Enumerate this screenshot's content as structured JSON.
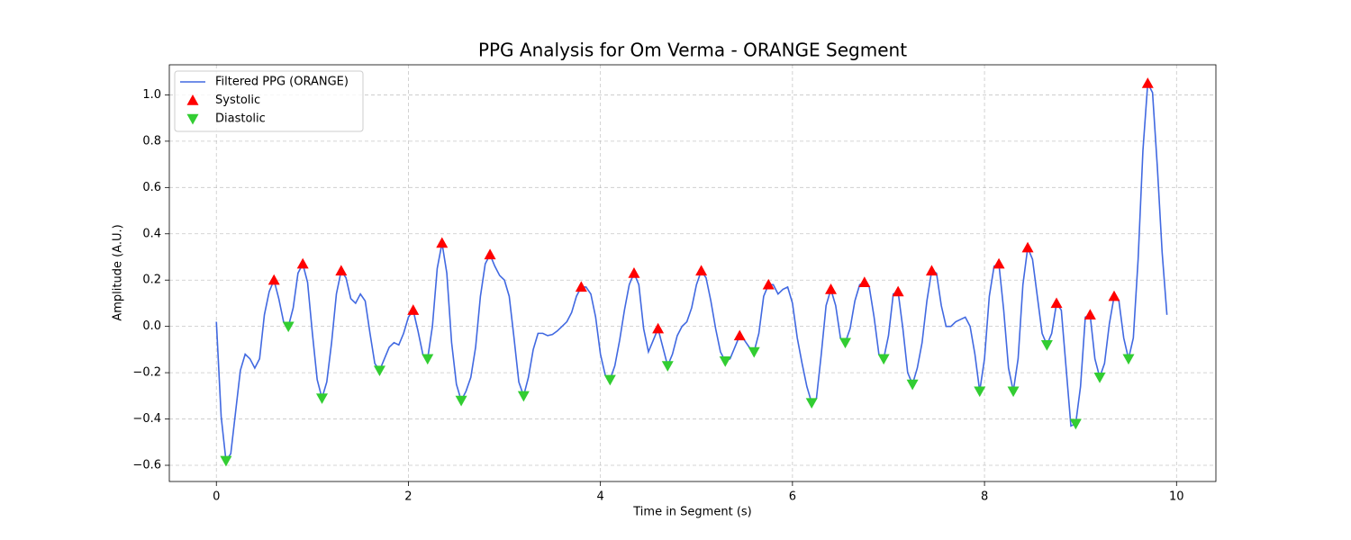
{
  "chart_data": {
    "type": "line",
    "title": "PPG Analysis for Om Verma - ORANGE Segment",
    "xlabel": "Time in Segment (s)",
    "ylabel": "Amplitude (A.U.)",
    "xlim": [
      -0.49,
      10.41
    ],
    "ylim": [
      -0.67,
      1.13
    ],
    "xticks": [
      0,
      2,
      4,
      6,
      8,
      10
    ],
    "yticks": [
      {
        "value": -0.6,
        "label": "−0.6"
      },
      {
        "value": -0.4,
        "label": "−0.4"
      },
      {
        "value": -0.2,
        "label": "−0.2"
      },
      {
        "value": 0,
        "label": "0.0"
      },
      {
        "value": 0.2,
        "label": "0.2"
      },
      {
        "value": 0.4,
        "label": "0.4"
      },
      {
        "value": 0.6,
        "label": "0.6"
      },
      {
        "value": 0.8,
        "label": "0.8"
      },
      {
        "value": 1,
        "label": "1.0"
      }
    ],
    "grid": true,
    "legend": "upper left",
    "series": [
      {
        "name": "Filtered PPG (ORANGE)",
        "kind": "line",
        "color": "#4169e1",
        "x": [
          0,
          0.05,
          0.1,
          0.15,
          0.2,
          0.25,
          0.3,
          0.35,
          0.4,
          0.45,
          0.5,
          0.55,
          0.6,
          0.65,
          0.7,
          0.75,
          0.8,
          0.85,
          0.9,
          0.95,
          1,
          1.05,
          1.1,
          1.15,
          1.2,
          1.25,
          1.3,
          1.35,
          1.4,
          1.45,
          1.5,
          1.55,
          1.6,
          1.65,
          1.7,
          1.75,
          1.8,
          1.85,
          1.9,
          1.95,
          2,
          2.05,
          2.1,
          2.15,
          2.2,
          2.25,
          2.3,
          2.35,
          2.4,
          2.45,
          2.5,
          2.55,
          2.6,
          2.65,
          2.7,
          2.75,
          2.8,
          2.85,
          2.9,
          2.95,
          3,
          3.05,
          3.1,
          3.15,
          3.2,
          3.25,
          3.3,
          3.35,
          3.4,
          3.45,
          3.5,
          3.55,
          3.6,
          3.65,
          3.7,
          3.75,
          3.8,
          3.85,
          3.9,
          3.95,
          4,
          4.05,
          4.1,
          4.15,
          4.2,
          4.25,
          4.3,
          4.35,
          4.4,
          4.45,
          4.5,
          4.55,
          4.6,
          4.65,
          4.7,
          4.75,
          4.8,
          4.85,
          4.9,
          4.95,
          5,
          5.05,
          5.1,
          5.15,
          5.2,
          5.25,
          5.3,
          5.35,
          5.4,
          5.45,
          5.5,
          5.55,
          5.6,
          5.65,
          5.7,
          5.75,
          5.8,
          5.85,
          5.9,
          5.95,
          6,
          6.05,
          6.1,
          6.15,
          6.2,
          6.25,
          6.3,
          6.35,
          6.4,
          6.45,
          6.5,
          6.55,
          6.6,
          6.65,
          6.7,
          6.75,
          6.8,
          6.85,
          6.9,
          6.95,
          7,
          7.05,
          7.1,
          7.15,
          7.2,
          7.25,
          7.3,
          7.35,
          7.4,
          7.45,
          7.5,
          7.55,
          7.6,
          7.65,
          7.7,
          7.75,
          7.8,
          7.85,
          7.9,
          7.95,
          8,
          8.05,
          8.1,
          8.15,
          8.2,
          8.25,
          8.3,
          8.35,
          8.4,
          8.45,
          8.5,
          8.55,
          8.6,
          8.65,
          8.7,
          8.75,
          8.8,
          8.85,
          8.9,
          8.95,
          9,
          9.05,
          9.1,
          9.15,
          9.2,
          9.25,
          9.3,
          9.35,
          9.4,
          9.45,
          9.5,
          9.55,
          9.6,
          9.65,
          9.7,
          9.75,
          9.8,
          9.85,
          9.9
        ],
        "values": [
          0.02,
          -0.39,
          -0.58,
          -0.55,
          -0.37,
          -0.19,
          -0.12,
          -0.14,
          -0.18,
          -0.14,
          0.05,
          0.15,
          0.2,
          0.12,
          0.02,
          0,
          0.08,
          0.23,
          0.27,
          0.19,
          -0.03,
          -0.23,
          -0.31,
          -0.24,
          -0.07,
          0.14,
          0.24,
          0.21,
          0.12,
          0.1,
          0.14,
          0.11,
          -0.03,
          -0.16,
          -0.19,
          -0.14,
          -0.09,
          -0.07,
          -0.08,
          -0.03,
          0.04,
          0.07,
          -0.02,
          -0.12,
          -0.14,
          0,
          0.25,
          0.36,
          0.23,
          -0.07,
          -0.25,
          -0.32,
          -0.28,
          -0.22,
          -0.09,
          0.13,
          0.27,
          0.31,
          0.26,
          0.22,
          0.2,
          0.13,
          -0.05,
          -0.24,
          -0.3,
          -0.22,
          -0.1,
          -0.03,
          -0.03,
          -0.04,
          -0.035,
          -0.02,
          0,
          0.02,
          0.06,
          0.13,
          0.17,
          0.17,
          0.14,
          0.04,
          -0.12,
          -0.21,
          -0.23,
          -0.17,
          -0.06,
          0.07,
          0.18,
          0.23,
          0.18,
          -0.01,
          -0.11,
          -0.06,
          -0.01,
          -0.09,
          -0.17,
          -0.12,
          -0.04,
          0,
          0.02,
          0.08,
          0.18,
          0.24,
          0.21,
          0.11,
          -0.01,
          -0.11,
          -0.15,
          -0.14,
          -0.09,
          -0.04,
          -0.06,
          -0.09,
          -0.11,
          -0.03,
          0.13,
          0.18,
          0.18,
          0.14,
          0.16,
          0.17,
          0.1,
          -0.05,
          -0.16,
          -0.26,
          -0.33,
          -0.31,
          -0.12,
          0.09,
          0.16,
          0.09,
          -0.05,
          -0.07,
          -0.01,
          0.11,
          0.18,
          0.19,
          0.17,
          0.04,
          -0.12,
          -0.14,
          -0.04,
          0.14,
          0.15,
          -0.01,
          -0.2,
          -0.25,
          -0.18,
          -0.07,
          0.11,
          0.24,
          0.23,
          0.09,
          0,
          0,
          0.02,
          0.03,
          0.04,
          0,
          -0.12,
          -0.28,
          -0.14,
          0.13,
          0.26,
          0.27,
          0.07,
          -0.18,
          -0.28,
          -0.14,
          0.18,
          0.34,
          0.29,
          0.13,
          -0.03,
          -0.08,
          -0.03,
          0.1,
          0.07,
          -0.18,
          -0.43,
          -0.42,
          -0.26,
          0.04,
          0.05,
          -0.14,
          -0.22,
          -0.16,
          0.01,
          0.13,
          0.11,
          -0.05,
          -0.14,
          -0.05,
          0.29,
          0.76,
          1.05,
          1.01,
          0.69,
          0.32,
          0.05
        ]
      },
      {
        "name": "Systolic",
        "kind": "scatter",
        "marker": "up",
        "color": "#ff0000",
        "x": [
          0.6,
          0.9,
          1.3,
          2.05,
          2.35,
          2.85,
          3.8,
          4.35,
          4.6,
          5.05,
          5.45,
          5.75,
          6.4,
          6.75,
          7.1,
          7.45,
          8.15,
          8.45,
          8.75,
          9.1,
          9.35,
          9.7
        ],
        "values": [
          0.2,
          0.27,
          0.24,
          0.07,
          0.36,
          0.31,
          0.17,
          0.23,
          -0.01,
          0.24,
          -0.04,
          0.18,
          0.16,
          0.19,
          0.15,
          0.24,
          0.27,
          0.34,
          0.1,
          0.05,
          0.13,
          1.05
        ]
      },
      {
        "name": "Diastolic",
        "kind": "scatter",
        "marker": "down",
        "color": "#32cd32",
        "x": [
          0.1,
          0.75,
          1.1,
          1.7,
          2.2,
          2.55,
          3.2,
          4.1,
          4.7,
          5.3,
          5.6,
          6.2,
          6.55,
          6.95,
          7.25,
          7.95,
          8.3,
          8.65,
          8.95,
          9.2,
          9.5
        ],
        "values": [
          -0.58,
          0,
          -0.31,
          -0.19,
          -0.14,
          -0.32,
          -0.3,
          -0.23,
          -0.17,
          -0.15,
          -0.11,
          -0.33,
          -0.07,
          -0.14,
          -0.25,
          -0.28,
          -0.28,
          -0.08,
          -0.42,
          -0.22,
          -0.14
        ]
      }
    ]
  }
}
